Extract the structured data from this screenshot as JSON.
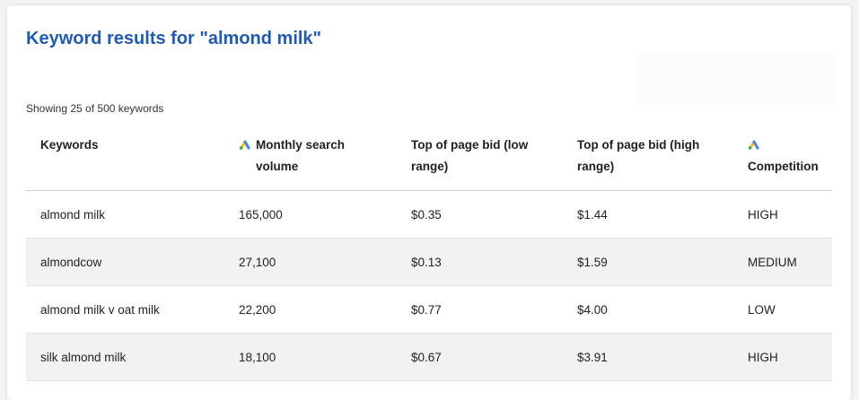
{
  "title": "Keyword results for \"almond milk\"",
  "showing_text": "Showing 25 of 500 keywords",
  "colors": {
    "title": "#1f5ab8",
    "google_ads_blue": "#4285f4",
    "google_ads_yellow": "#fbbc04",
    "google_ads_green": "#34a853"
  },
  "table": {
    "headers": {
      "keywords": "Keywords",
      "volume_line1": "Monthly search",
      "volume_line2": "volume",
      "bid_low_line1": "Top of page bid (low",
      "bid_low_line2": "range)",
      "bid_high_line1": "Top of page bid (high",
      "bid_high_line2": "range)",
      "competition": "Competition"
    },
    "header_icon": "google-ads-icon",
    "rows": [
      {
        "keyword": "almond milk",
        "volume": "165,000",
        "bid_low": "$0.35",
        "bid_high": "$1.44",
        "competition": "HIGH"
      },
      {
        "keyword": "almondcow",
        "volume": "27,100",
        "bid_low": "$0.13",
        "bid_high": "$1.59",
        "competition": "MEDIUM"
      },
      {
        "keyword": "almond milk v oat milk",
        "volume": "22,200",
        "bid_low": "$0.77",
        "bid_high": "$4.00",
        "competition": "LOW"
      },
      {
        "keyword": "silk almond milk",
        "volume": "18,100",
        "bid_low": "$0.67",
        "bid_high": "$3.91",
        "competition": "HIGH"
      }
    ]
  }
}
